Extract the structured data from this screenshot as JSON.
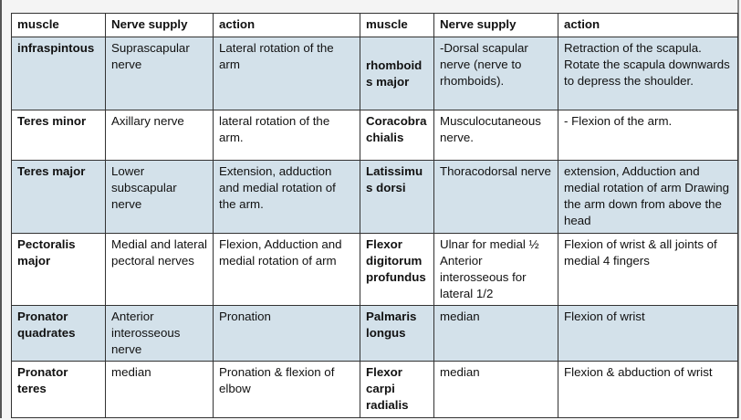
{
  "table": {
    "header": [
      "muscle",
      "Nerve supply",
      "action",
      "muscle",
      "Nerve supply",
      "action"
    ],
    "rows": [
      [
        "infraspintous",
        "Suprascapular nerve",
        "Lateral rotation of the arm",
        "rhomboids major",
        "-Dorsal scapular nerve (nerve to rhomboids).",
        "Retraction of the scapula. Rotate the scapula downwards to depress the shoulder."
      ],
      [
        "Teres minor",
        "Axillary nerve",
        "lateral rotation of the arm.",
        "Coracobrachialis",
        "Musculocutaneous nerve.",
        "- Flexion of the arm."
      ],
      [
        "Teres major",
        "Lower subscapular nerve",
        "Extension, adduction and medial rotation of the arm.",
        "Latissimus dorsi",
        "Thoracodorsal nerve",
        "extension, Adduction and medial rotation of arm Drawing the arm down from above the head"
      ],
      [
        "Pectoralis major",
        "Medial and lateral pectoral nerves",
        "Flexion, Adduction and medial rotation of arm",
        "Flexor digitorum profundus",
        "Ulnar for medial ½ Anterior interosseous for lateral 1/2",
        "Flexion of wrist & all joints of medial 4 fingers"
      ],
      [
        "Pronator quadrates",
        "Anterior interosseous nerve",
        "Pronation",
        "Palmaris longus",
        "median",
        "Flexion of wrist"
      ],
      [
        "Pronator teres",
        "median",
        "Pronation & flexion of elbow",
        "Flexor carpi radialis",
        "median",
        "Flexion & abduction of wrist"
      ]
    ]
  }
}
